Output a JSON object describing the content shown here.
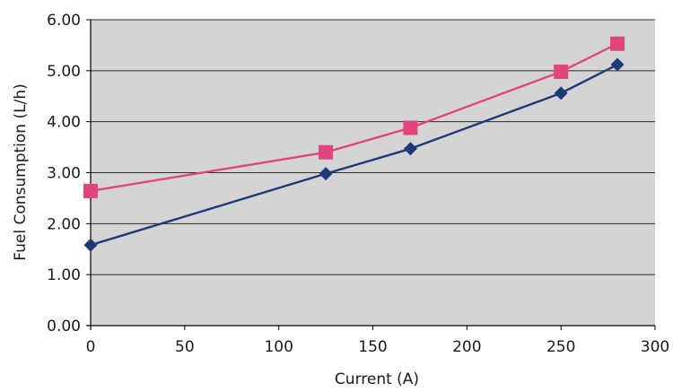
{
  "chart_data": {
    "type": "line",
    "xlabel": "Current (A)",
    "ylabel": "Fuel Consumption (L/h)",
    "xlim": [
      0,
      300
    ],
    "ylim": [
      0,
      6
    ],
    "x_ticks": [
      "0",
      "50",
      "100",
      "150",
      "200",
      "250",
      "300"
    ],
    "y_ticks": [
      "0.00",
      "1.00",
      "2.00",
      "3.00",
      "4.00",
      "5.00",
      "6.00"
    ],
    "grid": "horizontal",
    "background_color": "#d4d4d4",
    "series": [
      {
        "x": [
          0,
          125,
          170,
          250,
          280
        ],
        "values": [
          1.58,
          2.98,
          3.47,
          4.56,
          5.12
        ],
        "color": "#1f3a78",
        "marker": "diamond"
      },
      {
        "x": [
          0,
          125,
          170,
          250,
          280
        ],
        "values": [
          2.64,
          3.4,
          3.88,
          4.98,
          5.53
        ],
        "color": "#e0457b",
        "marker": "square"
      }
    ]
  }
}
